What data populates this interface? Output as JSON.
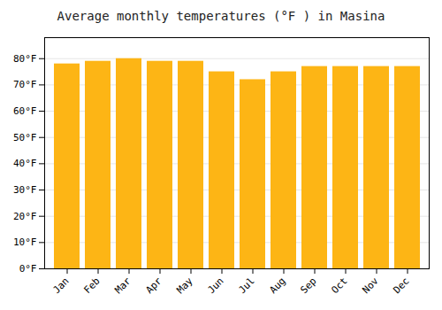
{
  "chart_data": {
    "type": "bar",
    "title": "Average monthly temperatures (°F ) in Masina",
    "categories": [
      "Jan",
      "Feb",
      "Mar",
      "Apr",
      "May",
      "Jun",
      "Jul",
      "Aug",
      "Sep",
      "Oct",
      "Nov",
      "Dec"
    ],
    "values": [
      78,
      79,
      80,
      79,
      79,
      75,
      72,
      75,
      77,
      77,
      77,
      77
    ],
    "color": "#FDB515",
    "ylim": [
      0,
      88
    ],
    "yticks": [
      {
        "value": 0,
        "label": "0°F"
      },
      {
        "value": 10,
        "label": "10°F"
      },
      {
        "value": 20,
        "label": "20°F"
      },
      {
        "value": 30,
        "label": "30°F"
      },
      {
        "value": 40,
        "label": "40°F"
      },
      {
        "value": 50,
        "label": "50°F"
      },
      {
        "value": 60,
        "label": "60°F"
      },
      {
        "value": 70,
        "label": "70°F"
      },
      {
        "value": 80,
        "label": "80°F"
      }
    ],
    "grid": true
  }
}
